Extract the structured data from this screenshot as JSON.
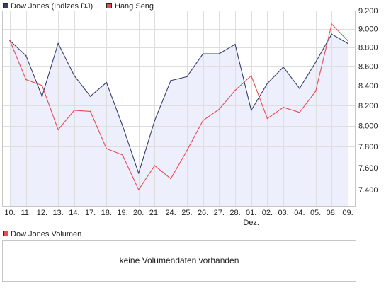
{
  "chart_data": {
    "type": "line",
    "y_scale": "log",
    "ylim": [
      7250,
      9200
    ],
    "yticks": [
      9200,
      9000,
      8800,
      8600,
      8400,
      8200,
      8000,
      7800,
      7600,
      7400
    ],
    "ytick_labels": [
      "9.200",
      "9.000",
      "8.800",
      "8.600",
      "8.400",
      "8.200",
      "8.000",
      "7.800",
      "7.600",
      "7.400"
    ],
    "y_axis_side": "right",
    "categories": [
      "10.",
      "11.",
      "12.",
      "13.",
      "14.",
      "17.",
      "18.",
      "19.",
      "20.",
      "21.",
      "24.",
      "25.",
      "26.",
      "27.",
      "28.",
      "01.",
      "02.",
      "03.",
      "04.",
      "05.",
      "08.",
      "09."
    ],
    "month_markers": [
      {
        "index": 15,
        "label": "Dez."
      }
    ],
    "grid": true,
    "legend_position": "top-left",
    "series": [
      {
        "name": "Dow Jones (Indizes DJ)",
        "color": "#363e6e",
        "fill_color": "#eeeffc",
        "values": [
          8870,
          8710,
          8290,
          8840,
          8500,
          8290,
          8430,
          8000,
          7550,
          8050,
          8450,
          8490,
          8730,
          8730,
          8830,
          8150,
          8420,
          8590,
          8370,
          8640,
          8940,
          8840
        ]
      },
      {
        "name": "Hang Seng",
        "color": "#ea4a52",
        "values": [
          8870,
          8460,
          8400,
          7960,
          8150,
          8140,
          7780,
          7720,
          7400,
          7620,
          7500,
          7760,
          8050,
          8160,
          8350,
          8500,
          8070,
          8180,
          8130,
          8340,
          9050,
          8870
        ]
      }
    ]
  },
  "volume_panel": {
    "legend_label": "Dow Jones Volumen",
    "legend_color": "#ea4a52",
    "message": "keine Volumendaten vorhanden"
  }
}
